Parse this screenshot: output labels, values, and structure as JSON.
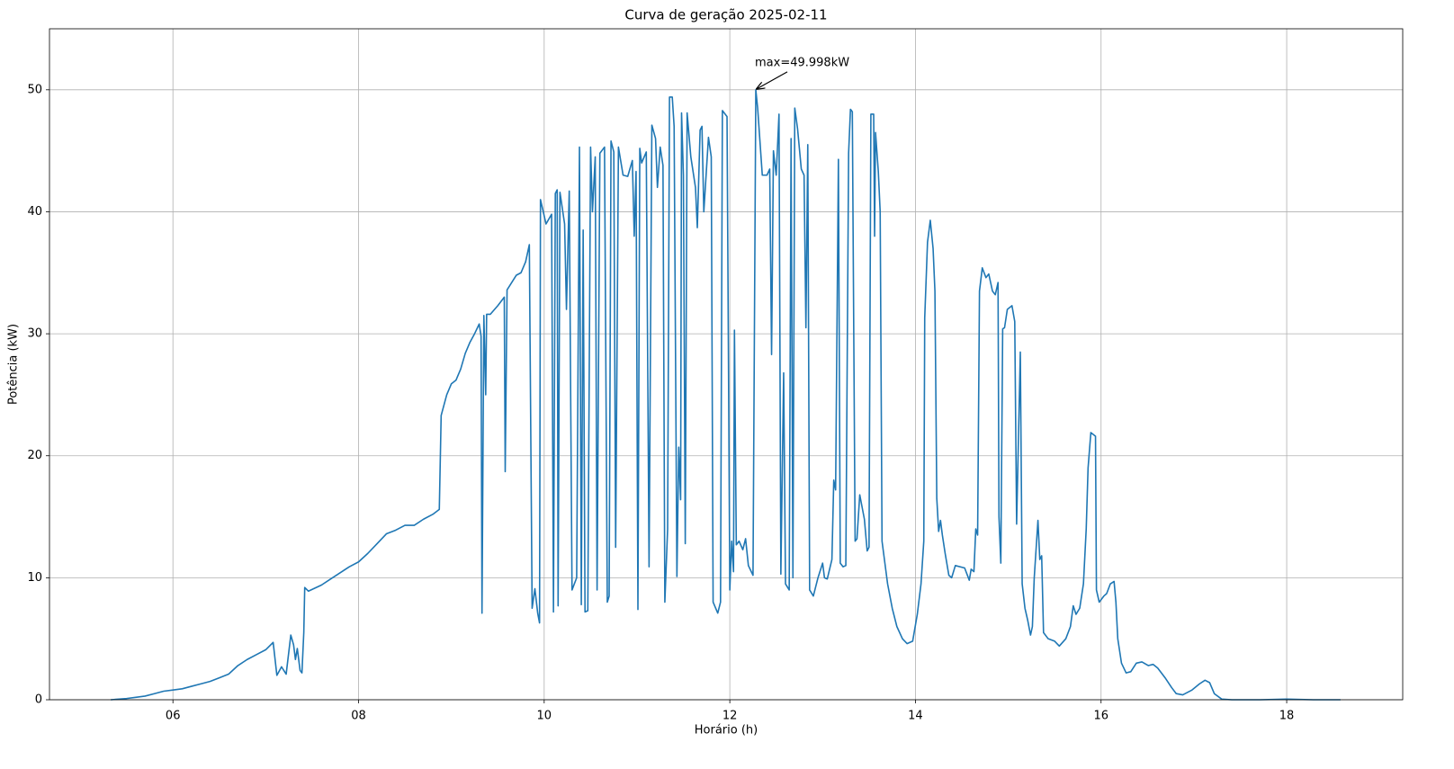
{
  "chart_data": {
    "type": "line",
    "title": "Curva de geração 2025-02-11",
    "x_label": "Horário (h)",
    "y_label": "Potência (kW)",
    "color": "#1f77b4",
    "grid": true,
    "xlim": [
      4.67,
      19.25
    ],
    "ylim": [
      0,
      55
    ],
    "xticks": [
      {
        "value": 6,
        "label": "06"
      },
      {
        "value": 8,
        "label": "08"
      },
      10,
      12,
      14,
      16,
      18
    ],
    "yticks": [
      0,
      10,
      20,
      30,
      40,
      50
    ],
    "annotation": {
      "text": "max=49.998kW",
      "x": 12.28,
      "y": 49.998
    },
    "x": [
      5.33,
      5.5,
      5.6,
      5.7,
      5.8,
      5.9,
      6.0,
      6.1,
      6.2,
      6.3,
      6.4,
      6.5,
      6.6,
      6.7,
      6.8,
      6.9,
      7.0,
      7.08,
      7.12,
      7.17,
      7.22,
      7.27,
      7.3,
      7.32,
      7.34,
      7.37,
      7.39,
      7.41,
      7.42,
      7.46,
      7.6,
      7.7,
      7.8,
      7.9,
      8.0,
      8.1,
      8.2,
      8.3,
      8.4,
      8.5,
      8.6,
      8.7,
      8.8,
      8.87,
      8.89,
      8.95,
      9.0,
      9.05,
      9.1,
      9.15,
      9.2,
      9.25,
      9.3,
      9.32,
      9.33,
      9.35,
      9.37,
      9.38,
      9.42,
      9.5,
      9.55,
      9.57,
      9.58,
      9.6,
      9.7,
      9.75,
      9.8,
      9.84,
      9.87,
      9.9,
      9.93,
      9.95,
      9.96,
      10.02,
      10.08,
      10.1,
      10.12,
      10.14,
      10.15,
      10.17,
      10.22,
      10.24,
      10.27,
      10.3,
      10.35,
      10.38,
      10.4,
      10.42,
      10.44,
      10.47,
      10.5,
      10.52,
      10.55,
      10.57,
      10.6,
      10.65,
      10.68,
      10.7,
      10.72,
      10.75,
      10.77,
      10.8,
      10.85,
      10.9,
      10.95,
      10.97,
      10.99,
      11.01,
      11.03,
      11.05,
      11.1,
      11.13,
      11.16,
      11.2,
      11.22,
      11.25,
      11.28,
      11.3,
      11.33,
      11.35,
      11.38,
      11.4,
      11.43,
      11.45,
      11.47,
      11.48,
      11.5,
      11.52,
      11.54,
      11.58,
      11.63,
      11.65,
      11.68,
      11.7,
      11.72,
      11.77,
      11.8,
      11.82,
      11.87,
      11.9,
      11.92,
      11.97,
      12.0,
      12.02,
      12.04,
      12.05,
      12.07,
      12.1,
      12.14,
      12.17,
      12.2,
      12.25,
      12.28,
      12.3,
      12.35,
      12.4,
      12.43,
      12.45,
      12.47,
      12.5,
      12.53,
      12.55,
      12.58,
      12.6,
      12.64,
      12.66,
      12.68,
      12.7,
      12.73,
      12.77,
      12.8,
      12.82,
      12.84,
      12.86,
      12.9,
      12.95,
      13.0,
      13.02,
      13.05,
      13.1,
      13.12,
      13.14,
      13.17,
      13.19,
      13.22,
      13.25,
      13.28,
      13.3,
      13.32,
      13.35,
      13.37,
      13.4,
      13.45,
      13.48,
      13.5,
      13.52,
      13.55,
      13.56,
      13.57,
      13.6,
      13.62,
      13.64,
      13.7,
      13.75,
      13.8,
      13.86,
      13.91,
      13.97,
      14.02,
      14.06,
      14.09,
      14.1,
      14.13,
      14.16,
      14.19,
      14.21,
      14.23,
      14.25,
      14.27,
      14.29,
      14.32,
      14.36,
      14.39,
      14.43,
      14.53,
      14.58,
      14.6,
      14.63,
      14.65,
      14.67,
      14.69,
      14.72,
      14.76,
      14.79,
      14.83,
      14.86,
      14.89,
      14.9,
      14.92,
      14.94,
      14.96,
      14.99,
      15.04,
      15.07,
      15.09,
      15.13,
      15.15,
      15.18,
      15.21,
      15.24,
      15.26,
      15.28,
      15.32,
      15.34,
      15.36,
      15.38,
      15.43,
      15.5,
      15.55,
      15.62,
      15.67,
      15.7,
      15.73,
      15.77,
      15.81,
      15.84,
      15.86,
      15.89,
      15.94,
      15.95,
      15.98,
      16.03,
      16.06,
      16.1,
      16.14,
      16.16,
      16.18,
      16.22,
      16.27,
      16.32,
      16.38,
      16.44,
      16.51,
      16.56,
      16.61,
      16.69,
      16.76,
      16.81,
      16.88,
      16.98,
      17.06,
      17.12,
      17.17,
      17.22,
      17.3,
      17.41,
      17.71,
      18.0,
      18.29,
      18.58
    ],
    "values": [
      0,
      0.1,
      0.2,
      0.3,
      0.5,
      0.7,
      0.8,
      0.9,
      1.1,
      1.3,
      1.5,
      1.8,
      2.1,
      2.8,
      3.3,
      3.7,
      4.1,
      4.7,
      2.0,
      2.7,
      2.1,
      5.3,
      4.5,
      3.3,
      4.2,
      2.4,
      2.2,
      5.5,
      9.2,
      8.9,
      9.4,
      9.9,
      10.4,
      10.9,
      11.3,
      12.0,
      12.8,
      13.6,
      13.9,
      14.3,
      14.3,
      14.8,
      15.2,
      15.6,
      23.3,
      25.0,
      25.9,
      26.2,
      27.1,
      28.4,
      29.3,
      30.0,
      30.8,
      29.8,
      7.1,
      31.5,
      25.0,
      31.6,
      31.6,
      32.3,
      32.8,
      33.0,
      18.7,
      33.6,
      34.8,
      35.0,
      35.9,
      37.3,
      7.5,
      9.1,
      7.1,
      6.3,
      41.0,
      39.0,
      39.8,
      7.2,
      41.5,
      41.8,
      7.7,
      41.6,
      39.0,
      32.0,
      41.7,
      9.0,
      10.0,
      45.3,
      7.8,
      38.5,
      7.2,
      7.3,
      45.3,
      40.0,
      44.5,
      9.0,
      44.8,
      45.3,
      8.0,
      8.5,
      45.8,
      44.9,
      12.5,
      45.3,
      43.0,
      42.9,
      44.2,
      38.0,
      43.3,
      7.4,
      45.2,
      44.0,
      44.9,
      10.9,
      47.1,
      46.0,
      42.0,
      45.3,
      43.8,
      8.0,
      14.0,
      49.4,
      49.4,
      47.0,
      10.1,
      20.7,
      16.4,
      48.1,
      43.0,
      12.8,
      48.1,
      44.5,
      42.0,
      38.7,
      46.7,
      47.0,
      40.0,
      46.1,
      44.5,
      8.0,
      7.1,
      8.0,
      48.3,
      47.8,
      9.0,
      13.0,
      10.5,
      30.3,
      12.7,
      13.0,
      12.3,
      13.2,
      11.0,
      10.2,
      49.998,
      48.5,
      43.0,
      43.0,
      43.5,
      28.3,
      45.0,
      43.0,
      48.0,
      10.3,
      26.8,
      9.5,
      9.0,
      46.0,
      10.0,
      48.5,
      46.8,
      43.5,
      43.0,
      30.5,
      45.5,
      9.0,
      8.5,
      10.0,
      11.2,
      10.0,
      9.9,
      11.5,
      18.0,
      17.2,
      44.3,
      11.2,
      10.9,
      11.0,
      44.8,
      48.4,
      48.2,
      13.0,
      13.2,
      16.8,
      14.8,
      12.2,
      12.5,
      48.0,
      48.0,
      38.0,
      46.5,
      43.3,
      40.0,
      13.0,
      9.5,
      7.5,
      6.0,
      5.0,
      4.6,
      4.8,
      7.0,
      9.5,
      13.0,
      31.3,
      37.5,
      39.3,
      37.0,
      33.5,
      16.5,
      13.8,
      14.7,
      13.5,
      12.0,
      10.2,
      10.0,
      11.0,
      10.8,
      9.8,
      10.7,
      10.5,
      14.0,
      13.5,
      33.5,
      35.4,
      34.6,
      34.9,
      33.5,
      33.2,
      34.2,
      15.0,
      11.2,
      30.4,
      30.5,
      32.0,
      32.3,
      31.0,
      14.4,
      28.5,
      9.5,
      7.5,
      6.5,
      5.3,
      6.0,
      10.0,
      14.7,
      11.5,
      11.8,
      5.5,
      5.0,
      4.8,
      4.4,
      5.0,
      6.0,
      7.7,
      7.0,
      7.5,
      9.5,
      14.0,
      19.0,
      21.9,
      21.6,
      9.0,
      8.0,
      8.5,
      8.7,
      9.5,
      9.7,
      8.0,
      5.0,
      3.0,
      2.2,
      2.3,
      3.0,
      3.1,
      2.8,
      2.9,
      2.6,
      1.8,
      1.0,
      0.5,
      0.4,
      0.8,
      1.3,
      1.6,
      1.4,
      0.5,
      0.05,
      0,
      0,
      0.05,
      0,
      0
    ]
  }
}
